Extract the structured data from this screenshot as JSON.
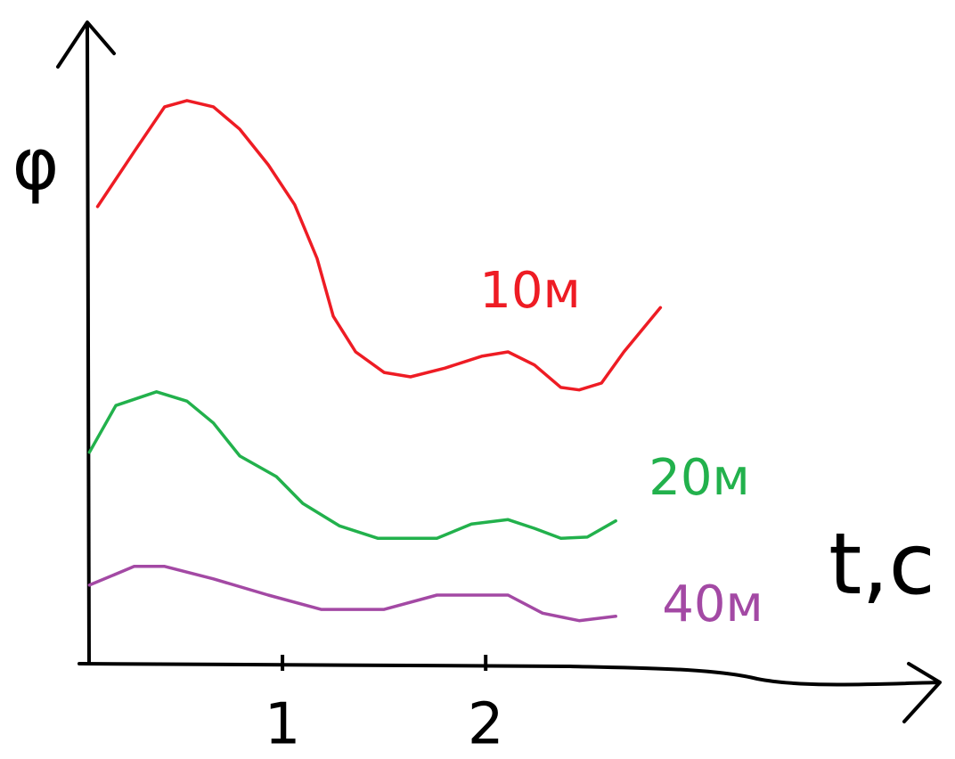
{
  "chart_data": {
    "type": "line",
    "y_label": "φ",
    "x_label": "t,c",
    "xlim": [
      0,
      4.2
    ],
    "ylim": [
      0,
      10
    ],
    "xticks": [
      1,
      2
    ],
    "series": [
      {
        "name": "10м",
        "color": "#ee1c24",
        "x": [
          0.09,
          0.27,
          0.42,
          0.53,
          0.66,
          0.79,
          0.93,
          1.06,
          1.17,
          1.25,
          1.36,
          1.5,
          1.63,
          1.8,
          1.98,
          2.11,
          2.24,
          2.37,
          2.46,
          2.57,
          2.68,
          2.86
        ],
        "values": [
          7.33,
          8.21,
          8.93,
          9.03,
          8.93,
          8.57,
          8.0,
          7.36,
          6.5,
          5.57,
          5.0,
          4.67,
          4.6,
          4.74,
          4.93,
          5.0,
          4.79,
          4.43,
          4.39,
          4.5,
          5.0,
          5.71
        ]
      },
      {
        "name": "20м",
        "color": "#22b14c",
        "x": [
          0.05,
          0.18,
          0.38,
          0.53,
          0.66,
          0.79,
          0.97,
          1.1,
          1.28,
          1.47,
          1.76,
          1.93,
          2.11,
          2.24,
          2.37,
          2.5,
          2.64
        ],
        "values": [
          3.39,
          4.14,
          4.36,
          4.21,
          3.86,
          3.33,
          3.0,
          2.57,
          2.21,
          2.01,
          2.01,
          2.24,
          2.31,
          2.17,
          2.01,
          2.03,
          2.29
        ]
      },
      {
        "name": "40м",
        "color": "#a349a4",
        "x": [
          0.05,
          0.27,
          0.42,
          0.66,
          0.93,
          1.19,
          1.5,
          1.76,
          2.11,
          2.28,
          2.46,
          2.64
        ],
        "values": [
          1.26,
          1.56,
          1.56,
          1.36,
          1.1,
          0.87,
          0.87,
          1.1,
          1.1,
          0.81,
          0.69,
          0.76
        ]
      }
    ]
  }
}
